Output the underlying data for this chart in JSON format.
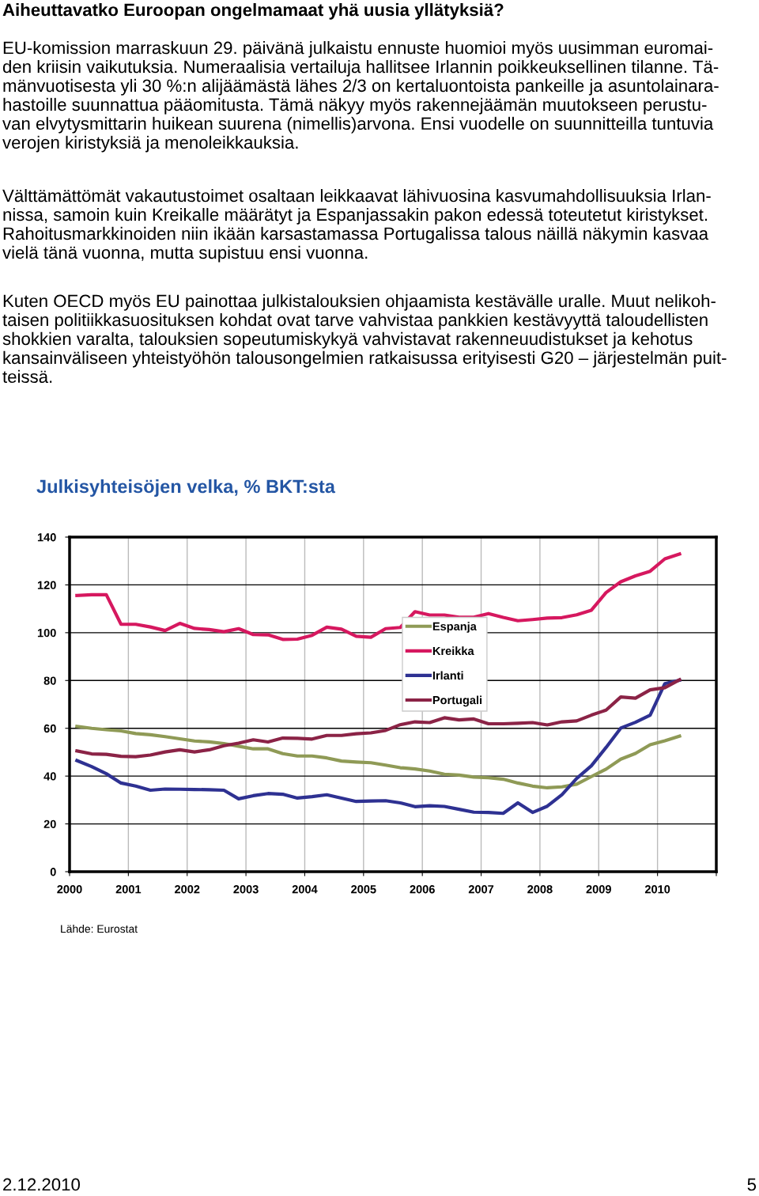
{
  "chart_data": {
    "type": "line",
    "title": "Julkisyhteisöjen velka, % BKT:sta",
    "annotations": [
      "Aiheuttavatko Euroopan ongelmamaat yhä uusia yllätyksiä?",
      "EU-komission marraskuun 29. päivänä julkaistu ennuste huomioi myös uusimman euromai-\nden kriisin vaikutuksia. Numeraalisia vertailuja hallitsee Irlannin poikkeuksellinen tilanne. Tä-\nmänvuotisesta yli 30 %:n alijäämästä lähes 2/3 on kertaluontoista pankeille ja asuntolainara-\nhastoille suunnattua pääomitusta. Tämä näkyy myös rakennejäämän muutokseen perustu-\nvan elvytysmittarin huikean suurena (nimellis)arvona. Ensi vuodelle on suunnitteilla tuntuvia\nverojen kiristyksiä ja menoleikkauksia.",
      "Välttämättömät vakautustoimet osaltaan leikkaavat lähivuosina kasvumahdollisuuksia Irlan-\nnissa, samoin kuin Kreikalle määrätyt ja Espanjassakin pakon edessä toteutetut kiristykset.\nRahoitusmarkkinoiden niin ikään karsastamassa Portugalissa talous näillä näkymin kasvaa\nvielä tänä vuonna, mutta supistuu ensi vuonna.",
      "Kuten OECD myös EU painottaa julkistalouksien ohjaamista kestävälle uralle. Muut nelikoh-\ntaisen politiikkasuosituksen kohdat ovat tarve vahvistaa pankkien kestävyyttä taloudellisten\nshokkien varalta, talouksien sopeutumiskykyä vahvistavat rakenneuudistukset ja kehotus\nkansainväliseen yhteistyöhön talousongelmien ratkaisussa erityisesti G20 – järjestelmän puit-\nteissä.",
      "Lähde: Eurostat",
      "2.12.2010",
      "5"
    ],
    "x": [
      2000.125,
      2000.375,
      2000.625,
      2000.875,
      2001.125,
      2001.375,
      2001.625,
      2001.875,
      2002.125,
      2002.375,
      2002.625,
      2002.875,
      2003.125,
      2003.375,
      2003.625,
      2003.875,
      2004.125,
      2004.375,
      2004.625,
      2004.875,
      2005.125,
      2005.375,
      2005.625,
      2005.875,
      2006.125,
      2006.375,
      2006.625,
      2006.875,
      2007.125,
      2007.375,
      2007.625,
      2007.875,
      2008.125,
      2008.375,
      2008.625,
      2008.875,
      2009.125,
      2009.375,
      2009.625,
      2009.875,
      2010.125,
      2010.375
    ],
    "series": [
      {
        "name": "Espanja",
        "color": "#8f9a56",
        "values": [
          60.8,
          60.0,
          59.4,
          58.9,
          57.8,
          57.3,
          56.5,
          55.6,
          54.7,
          54.3,
          53.6,
          52.5,
          51.4,
          51.4,
          49.4,
          48.4,
          48.4,
          47.6,
          46.3,
          45.9,
          45.6,
          44.6,
          43.5,
          43.0,
          42.1,
          40.8,
          40.4,
          39.6,
          39.3,
          38.7,
          37.1,
          35.8,
          35.1,
          35.5,
          36.6,
          39.8,
          42.9,
          47.1,
          49.5,
          53.1,
          54.8,
          56.7
        ]
      },
      {
        "name": "Kreikka",
        "color": "#d6185f",
        "values": [
          115.6,
          115.9,
          115.9,
          103.5,
          103.5,
          102.4,
          100.9,
          103.9,
          101.8,
          101.3,
          100.4,
          101.7,
          99.2,
          99.1,
          97.2,
          97.3,
          98.9,
          102.3,
          101.5,
          98.5,
          98.1,
          101.7,
          102.2,
          108.8,
          107.4,
          107.4,
          106.5,
          106.5,
          108.0,
          106.4,
          105.0,
          105.5,
          106.1,
          106.3,
          107.5,
          109.4,
          116.8,
          121.3,
          123.8,
          125.7,
          130.9,
          132.9
        ]
      },
      {
        "name": "Irlanti",
        "color": "#2e3192",
        "values": [
          46.5,
          44.0,
          41.0,
          37.1,
          35.8,
          34.1,
          34.6,
          34.5,
          34.4,
          34.3,
          34.1,
          30.5,
          31.8,
          32.7,
          32.4,
          30.8,
          31.4,
          32.2,
          30.8,
          29.4,
          29.6,
          29.7,
          28.8,
          27.2,
          27.6,
          27.3,
          26.1,
          24.9,
          24.8,
          24.4,
          28.8,
          24.8,
          27.4,
          32.2,
          39.0,
          44.3,
          52.0,
          60.1,
          62.5,
          65.5,
          78.7,
          80.1
        ]
      },
      {
        "name": "Portugali",
        "color": "#8b2346",
        "values": [
          50.5,
          49.3,
          49.1,
          48.3,
          48.1,
          48.8,
          50.1,
          51.0,
          50.1,
          51.0,
          52.7,
          53.8,
          55.2,
          54.3,
          55.9,
          55.8,
          55.5,
          57.0,
          57.0,
          57.7,
          58.1,
          59.1,
          61.5,
          62.7,
          62.4,
          64.4,
          63.5,
          63.9,
          61.9,
          61.9,
          62.1,
          62.4,
          61.4,
          62.7,
          63.1,
          65.5,
          67.6,
          73.1,
          72.6,
          76.1,
          77.0,
          80.3
        ]
      }
    ],
    "xlim": [
      2000,
      2011
    ],
    "xticks": [
      2000,
      2001,
      2002,
      2003,
      2004,
      2005,
      2006,
      2007,
      2008,
      2009,
      2010,
      {
        "value": 2011,
        "label": null
      }
    ],
    "ylim": [
      0,
      140
    ],
    "yticks": [
      0,
      20,
      40,
      60,
      80,
      100,
      120,
      140
    ],
    "grid": true,
    "legend": "center",
    "marker": "none",
    "line_style": "solid"
  }
}
